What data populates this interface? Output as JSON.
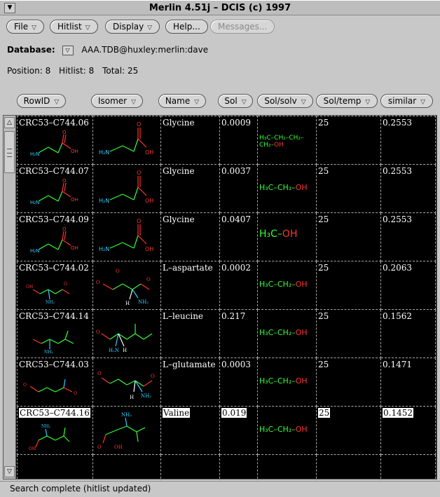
{
  "window": {
    "title": "Merlin 4.51j – DCIS (c) 1997"
  },
  "toolbar": {
    "file": "File",
    "hitlist": "Hitlist",
    "display": "Display",
    "help": "Help...",
    "messages": "Messages..."
  },
  "database": {
    "label": "Database:",
    "value": "AAA.TDB@huxley:merlin:dave"
  },
  "position": {
    "position": "Position: 8",
    "hitlist": "Hitlist: 8",
    "total": "Total: 25"
  },
  "columns": {
    "rowid": "RowID",
    "isomer": "Isomer",
    "name": "Name",
    "sol": "Sol",
    "solsolv": "Sol/solv",
    "soltemp": "Sol/temp",
    "similar": "similar"
  },
  "rows": [
    {
      "rowid": "CRC53–C744.06",
      "name": "Glycine",
      "sol": "0.0009",
      "solvent": {
        "left": "H₃C–CH₂–CH₂–CH₂–",
        "right": "OH"
      },
      "temp": "25",
      "similar": "0.2553"
    },
    {
      "rowid": "CRC53–C744.07",
      "name": "Glycine",
      "sol": "0.0037",
      "solvent": {
        "left": "H₃C–CH₂–",
        "right": "OH"
      },
      "temp": "25",
      "similar": "0.2553"
    },
    {
      "rowid": "CRC53–C744.09",
      "name": "Glycine",
      "sol": "0.0407",
      "solvent": {
        "left": "H₃C–",
        "right": "OH"
      },
      "temp": "25",
      "similar": "0.2553"
    },
    {
      "rowid": "CRC53–C744.02",
      "name": "L–aspartate",
      "sol": "0.0002",
      "solvent": {
        "left": "H₃C–CH₂–",
        "right": "OH"
      },
      "temp": "25",
      "similar": "0.2063"
    },
    {
      "rowid": "CRC53–C744.14",
      "name": "L–leucine",
      "sol": "0.217",
      "solvent": {
        "left": "H₃C–CH₂–",
        "right": "OH"
      },
      "temp": "25",
      "similar": "0.1562"
    },
    {
      "rowid": "CRC53–C744.03",
      "name": "L–glutamate",
      "sol": "0.0003",
      "solvent": {
        "left": "H₃C–CH₂–",
        "right": "OH"
      },
      "temp": "25",
      "similar": "0.1471"
    },
    {
      "rowid": "CRC53–C744.16",
      "name": "Valine",
      "sol": "0.019",
      "solvent": {
        "left": "H₃C–CH₂–",
        "right": "OH"
      },
      "temp": "25",
      "similar": "0.1452"
    }
  ],
  "status": {
    "text": "Search complete (hitlist updated)"
  }
}
